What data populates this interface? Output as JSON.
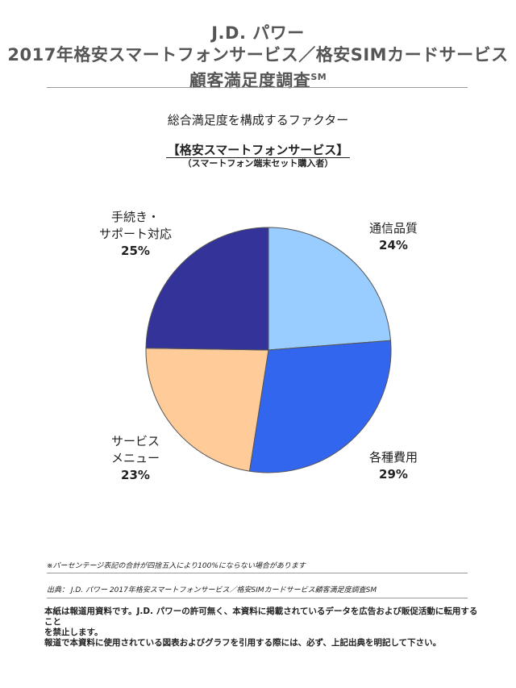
{
  "header": {
    "line1": "J.D. パワー",
    "line2": "2017年格安スマートフォンサービス／格安SIMカードサービス",
    "line3": "顧客満足度調査",
    "line3_sup": "SM"
  },
  "chart_title": "総合満足度を構成するファクター",
  "chart_subtitle": "【格安スマートフォンサービス】",
  "chart_subnote": "（スマートフォン端末セット購入者）",
  "chart_data": {
    "type": "pie",
    "title": "総合満足度を構成するファクター",
    "subtitle": "【格安スマートフォンサービス】",
    "slices": [
      {
        "label_lines": [
          "通信品質"
        ],
        "value": 24,
        "pct_label": "24%",
        "color": "#99CCFF"
      },
      {
        "label_lines": [
          "各種費用"
        ],
        "value": 29,
        "pct_label": "29%",
        "color": "#3366EE"
      },
      {
        "label_lines": [
          "サービス",
          "メニュー"
        ],
        "value": 23,
        "pct_label": "23%",
        "color": "#FFCC99"
      },
      {
        "label_lines": [
          "手続き・",
          "サポート対応"
        ],
        "value": 25,
        "pct_label": "25%",
        "color": "#333399"
      }
    ],
    "start": "12 o'clock",
    "direction": "clockwise"
  },
  "footnote": "※パーセンテージ表記の合計が四捨五入により100%にならない場合があります",
  "source": "出典： J.D. パワー 2017年格安スマートフォンサービス／格安SIMカードサービス顧客満足度調査SM",
  "disclaimer": [
    "本紙は報道用資料です。J.D. パワーの許可無く、本資料に掲載されているデータを広告および販促活動に転用すること",
    "を禁止します。",
    "報道で本資料に使用されている図表およびグラフを引用する際には、必ず、上記出典を明記して下さい。"
  ]
}
